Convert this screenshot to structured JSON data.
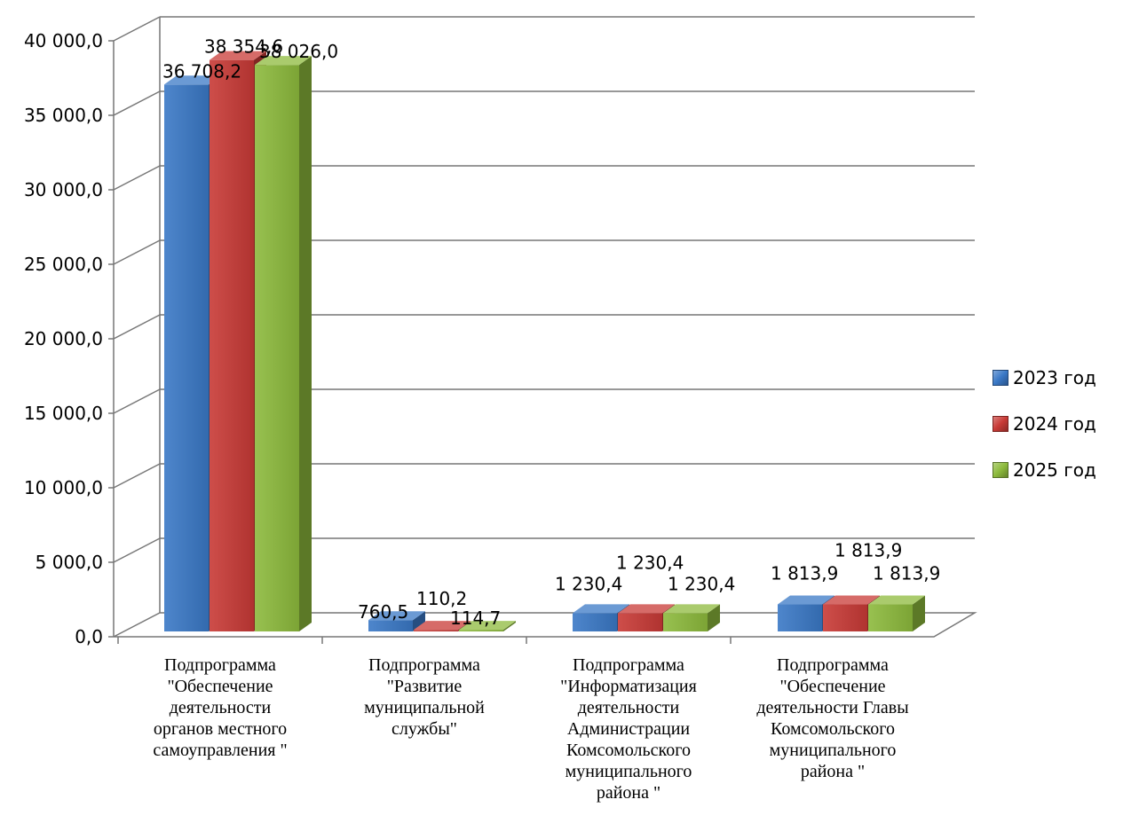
{
  "chart_data": {
    "type": "bar",
    "ylim": [
      0,
      40000
    ],
    "y_ticks": [
      "0,0",
      "5 000,0",
      "10 000,0",
      "15 000,0",
      "20 000,0",
      "25 000,0",
      "30 000,0",
      "35 000,0",
      "40 000,0"
    ],
    "categories": [
      [
        "Подпрограмма",
        "\"Обеспечение",
        "деятельности",
        "органов местного",
        "самоуправления \""
      ],
      [
        "Подпрограмма",
        "\"Развитие",
        "муниципальной",
        "службы\""
      ],
      [
        "Подпрограмма",
        "\"Информатизация",
        "деятельности",
        "Администрации",
        "Комсомольского",
        "муниципального",
        "района \""
      ],
      [
        "Подпрограмма",
        "\"Обеспечение",
        "деятельности Главы",
        "Комсомольского",
        "муниципального",
        "района \""
      ]
    ],
    "series": [
      {
        "name": "2023 год",
        "color": "#3a78c6",
        "values": [
          36708.2,
          760.5,
          1230.4,
          1813.9
        ],
        "labels": [
          "36 708,2",
          "760,5",
          "1 230,4",
          "1 813,9"
        ]
      },
      {
        "name": "2024 год",
        "color": "#c83a36",
        "values": [
          38354.6,
          110.2,
          1230.4,
          1813.9
        ],
        "labels": [
          "38 354,6",
          "110,2",
          "1 230,4",
          "1 813,9"
        ]
      },
      {
        "name": "2025 год",
        "color": "#8dba3c",
        "values": [
          38026.0,
          114.7,
          1230.4,
          1813.9
        ],
        "labels": [
          "38 026,0",
          "114,7",
          "1 230,4",
          "1 813,9"
        ]
      }
    ],
    "legend_position": "right",
    "grid": true
  }
}
